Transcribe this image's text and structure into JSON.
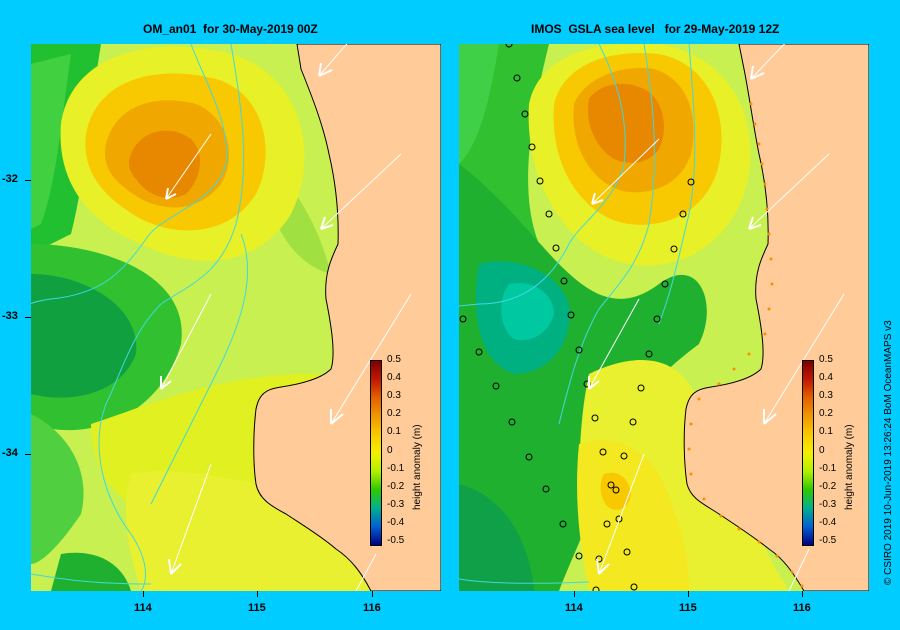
{
  "left_panel": {
    "title": "OM_an01  for 30-May-2019 00Z",
    "lat_labels": [
      "-32",
      "-33",
      "-34"
    ],
    "lon_labels": [
      "114",
      "115",
      "116"
    ]
  },
  "right_panel": {
    "title": "IMOS  GSLA sea level   for 29-May-2019 12Z",
    "lon_labels": [
      "114",
      "115",
      "116"
    ]
  },
  "colorbar": {
    "title": "height anomaly (m)",
    "labels": [
      "0.5",
      "0.4",
      "0.3",
      "0.2",
      "0.1",
      "0",
      "-0.1",
      "-0.2",
      "-0.3",
      "-0.4",
      "-0.5"
    ],
    "colors": [
      "#7f0000",
      "#c01800",
      "#e46000",
      "#f09800",
      "#f8c800",
      "#f4f000",
      "#b0f000",
      "#30c800",
      "#00b090",
      "#0060d0",
      "#000080"
    ]
  },
  "credit": "© CSIRO 2019   10-Jun-2019 13:26:24 BoM OceanMAPS v3",
  "colors": {
    "background": "#00ccff",
    "land": "#ffcc99",
    "ocean_base": "#c8f050"
  }
}
